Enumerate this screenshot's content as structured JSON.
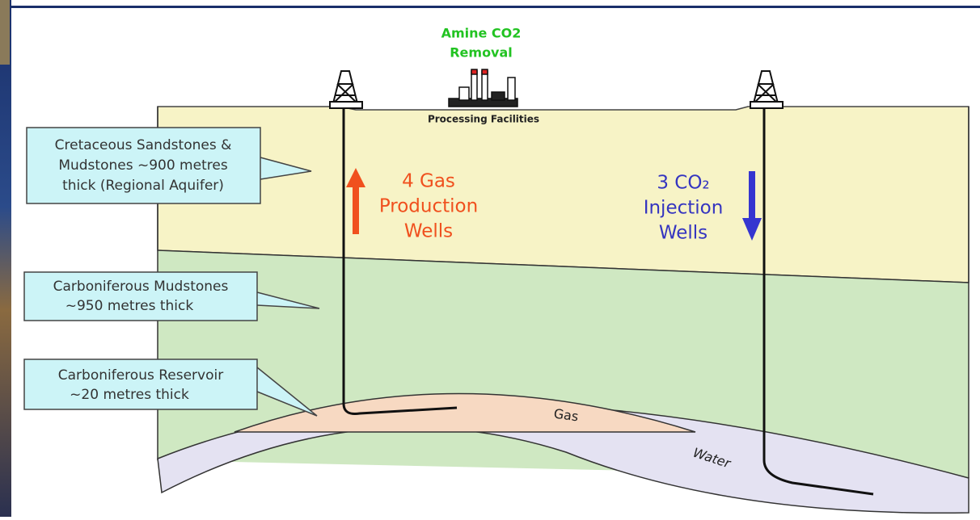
{
  "header": {
    "title_lines": [
      "Amine CO2",
      "Removal"
    ],
    "facility_label": "Processing Facilities"
  },
  "callouts": [
    {
      "lines": [
        "Cretaceous Sandstones &",
        "Mudstones ~900 metres",
        "thick (Regional Aquifer)"
      ]
    },
    {
      "lines": [
        "Carboniferous Mudstones",
        "~950 metres thick"
      ]
    },
    {
      "lines": [
        "Carboniferous Reservoir",
        "~20 metres thick"
      ]
    }
  ],
  "wells": [
    {
      "lines": [
        "4 Gas",
        "Production",
        "Wells"
      ]
    },
    {
      "lines": [
        "3 CO₂",
        "Injection",
        "Wells"
      ]
    }
  ],
  "zones": {
    "gas": "Gas",
    "water": "Water"
  }
}
